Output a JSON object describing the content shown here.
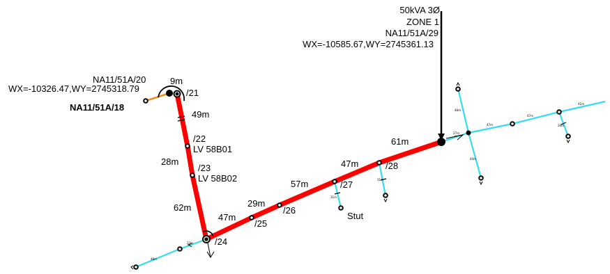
{
  "transformer": {
    "rating": "50kVA 3Ø",
    "zone": "ZONE 1",
    "id": "NA11/51A/29",
    "coords": "WX=-10585.67,WY=2745361.13"
  },
  "pole20": {
    "id": "NA11/51A/20",
    "coords": "WX=-10326.47,WY=2745318.79"
  },
  "pole18": {
    "id": "NA11/51A/18"
  },
  "poles": {
    "p21": "/21",
    "p22": "/22",
    "p22_lv": "LV 58B01",
    "p23": "/23",
    "p23_lv": "LV 58B02",
    "p24": "/24",
    "p25": "/25",
    "p26": "/26",
    "p27": "/27",
    "p28": "/28"
  },
  "spans": {
    "s9": "9m",
    "s49": "49m",
    "s28": "28m",
    "s62": "62m",
    "s47a": "47m",
    "s29": "29m",
    "s57": "57m",
    "s47b": "47m",
    "s61": "61m"
  },
  "stut": "Stut",
  "small_labels": {
    "e_47": "47m",
    "e_47b": "47m",
    "e_41": "41m",
    "e_27": "27m",
    "e_48": "48m",
    "e_44": "44m",
    "e_31a": "31m",
    "e_31b": "31m",
    "e_28": "28m",
    "e_27b": "27m",
    "e_48b": "48m"
  },
  "colors": {
    "main_line": "#ff0000",
    "branch_line": "#33ddee",
    "service_line": "#f09020",
    "node": "#000000"
  }
}
